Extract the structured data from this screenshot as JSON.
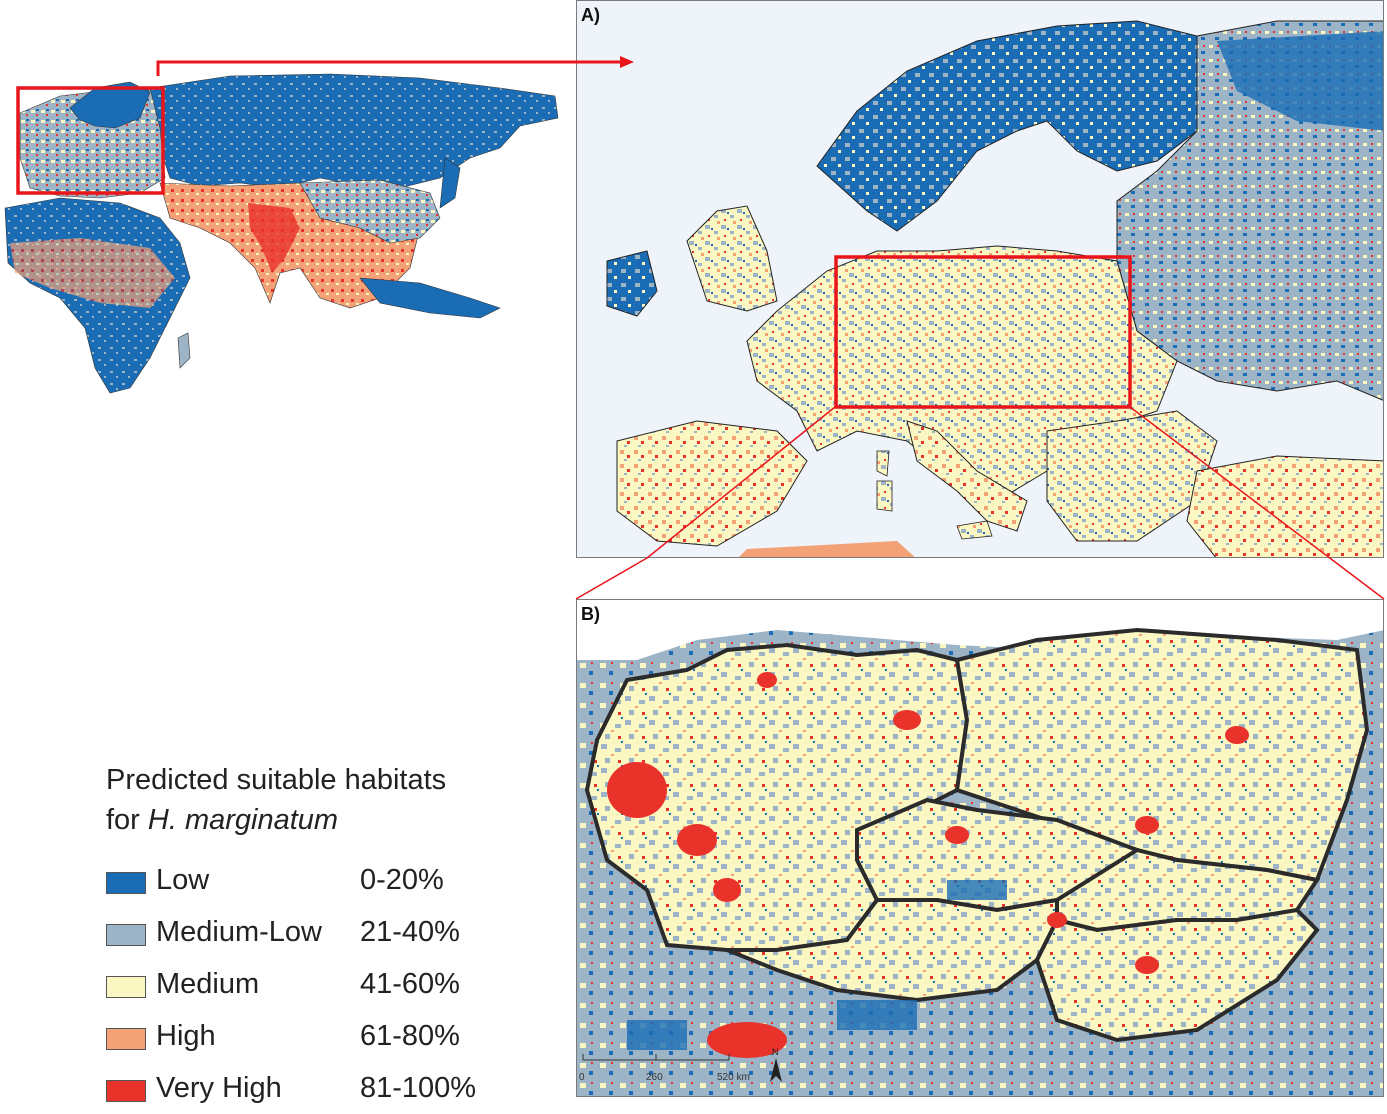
{
  "panels": {
    "a_label": "A)",
    "b_label": "B)"
  },
  "scale_bar": {
    "ticks": [
      "0",
      "260",
      "520 km"
    ],
    "north": "N"
  },
  "legend": {
    "title_line1": "Predicted suitable habitats",
    "title_prefix": "for ",
    "title_species": "H. marginatum",
    "classes": [
      {
        "name": "Low",
        "range": "0-20%",
        "color": "#1a6db5"
      },
      {
        "name": "Medium-Low",
        "range": "21-40%",
        "color": "#9db4c6"
      },
      {
        "name": "Medium",
        "range": "41-60%",
        "color": "#fbf7c2"
      },
      {
        "name": "High",
        "range": "61-80%",
        "color": "#f3a277"
      },
      {
        "name": "Very High",
        "range": "81-100%",
        "color": "#e8322a"
      }
    ]
  },
  "colors": {
    "highlight": "#e8151b",
    "sea": "#ffffff",
    "border": "#222222"
  }
}
